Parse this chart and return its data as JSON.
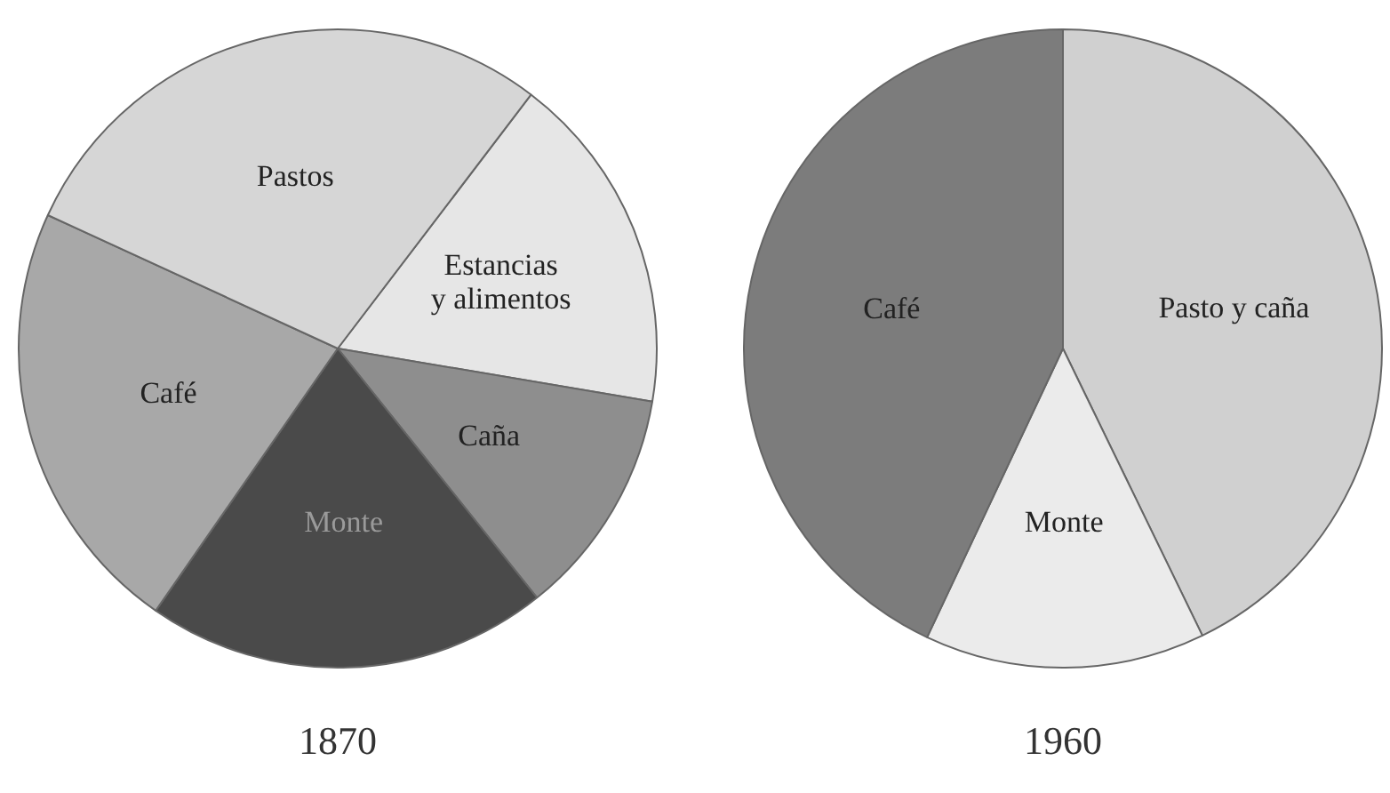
{
  "chart_data": [
    {
      "type": "pie",
      "title": "1870",
      "categories": [
        "Estancias y alimentos",
        "Caña",
        "Monte",
        "Café",
        "Pastos"
      ],
      "values": [
        17.3,
        11.6,
        20.4,
        22.2,
        28.5
      ],
      "colors": [
        "#e6e6e6",
        "#8e8e8e",
        "#4a4a4a",
        "#a8a8a8",
        "#d6d6d6"
      ],
      "legend": false
    },
    {
      "type": "pie",
      "title": "1960",
      "categories": [
        "Pasto y caña",
        "Monte",
        "Café"
      ],
      "values": [
        42.8,
        14.2,
        43.0
      ],
      "colors": [
        "#d0d0d0",
        "#ebebeb",
        "#7c7c7c"
      ],
      "legend": false
    }
  ]
}
